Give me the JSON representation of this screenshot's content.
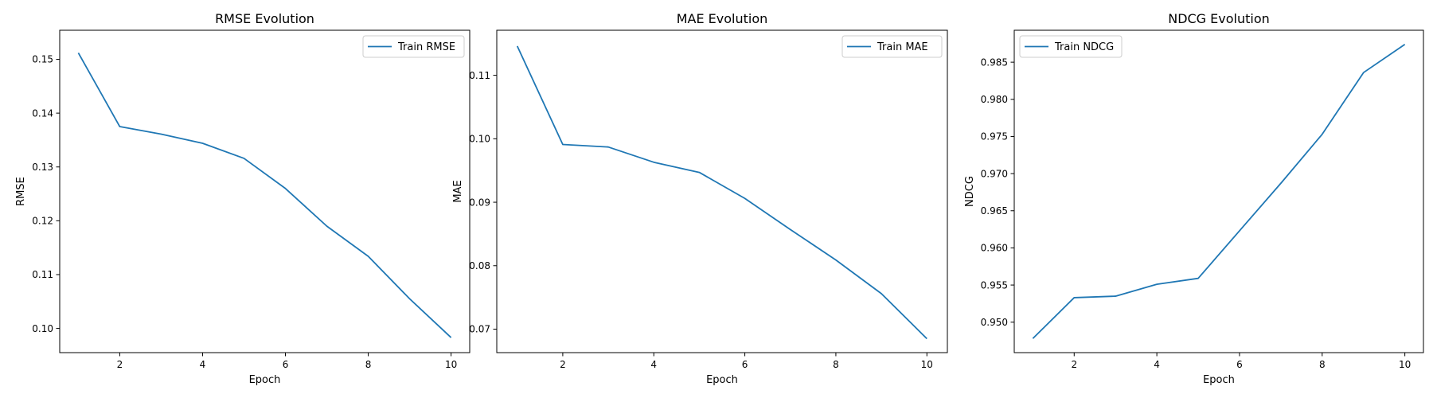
{
  "figure": {
    "background": "#ffffff"
  },
  "chart_data": [
    {
      "type": "line",
      "title": "RMSE Evolution",
      "xlabel": "Epoch",
      "ylabel": "RMSE",
      "x": [
        1,
        2,
        3,
        4,
        5,
        6,
        7,
        8,
        9,
        10
      ],
      "xlim": [
        0.55,
        10.45
      ],
      "ylim": [
        0.0955,
        0.1554
      ],
      "xticks": [
        2,
        4,
        6,
        8,
        10
      ],
      "xtick_labels": [
        "2",
        "4",
        "6",
        "8",
        "10"
      ],
      "yticks": [
        0.1,
        0.11,
        0.12,
        0.13,
        0.14,
        0.15
      ],
      "ytick_labels": [
        "0.10",
        "0.11",
        "0.12",
        "0.13",
        "0.14",
        "0.15"
      ],
      "grid": false,
      "legend": "upper right",
      "series": [
        {
          "name": "Train RMSE",
          "color": "#1f77b4",
          "values": [
            0.1512,
            0.1375,
            0.1361,
            0.1344,
            0.1316,
            0.126,
            0.119,
            0.1134,
            0.1055,
            0.0983
          ]
        }
      ]
    },
    {
      "type": "line",
      "title": "MAE Evolution",
      "xlabel": "Epoch",
      "ylabel": "MAE",
      "x": [
        1,
        2,
        3,
        4,
        5,
        6,
        7,
        8,
        9,
        10
      ],
      "xlim": [
        0.55,
        10.45
      ],
      "ylim": [
        0.0663,
        0.1171
      ],
      "xticks": [
        2,
        4,
        6,
        8,
        10
      ],
      "xtick_labels": [
        "2",
        "4",
        "6",
        "8",
        "10"
      ],
      "yticks": [
        0.07,
        0.08,
        0.09,
        0.1,
        0.11
      ],
      "ytick_labels": [
        "0.07",
        "0.08",
        "0.09",
        "0.10",
        "0.11"
      ],
      "grid": false,
      "legend": "upper right",
      "series": [
        {
          "name": "Train MAE",
          "color": "#1f77b4",
          "values": [
            0.1146,
            0.0991,
            0.0987,
            0.0963,
            0.0947,
            0.0906,
            0.0857,
            0.0809,
            0.0756,
            0.0685
          ]
        }
      ]
    },
    {
      "type": "line",
      "title": "NDCG Evolution",
      "xlabel": "Epoch",
      "ylabel": "NDCG",
      "x": [
        1,
        2,
        3,
        4,
        5,
        6,
        7,
        8,
        9,
        10
      ],
      "xlim": [
        0.55,
        10.45
      ],
      "ylim": [
        0.9459,
        0.9893
      ],
      "xticks": [
        2,
        4,
        6,
        8,
        10
      ],
      "xtick_labels": [
        "2",
        "4",
        "6",
        "8",
        "10"
      ],
      "yticks": [
        0.95,
        0.955,
        0.96,
        0.965,
        0.97,
        0.975,
        0.98,
        0.985
      ],
      "ytick_labels": [
        "0.950",
        "0.955",
        "0.960",
        "0.965",
        "0.970",
        "0.975",
        "0.980",
        "0.985"
      ],
      "grid": false,
      "legend": "upper left",
      "series": [
        {
          "name": "Train NDCG",
          "color": "#1f77b4",
          "values": [
            0.9478,
            0.9533,
            0.9535,
            0.9551,
            0.9559,
            0.9623,
            0.9687,
            0.9753,
            0.9836,
            0.9874
          ]
        }
      ]
    }
  ]
}
